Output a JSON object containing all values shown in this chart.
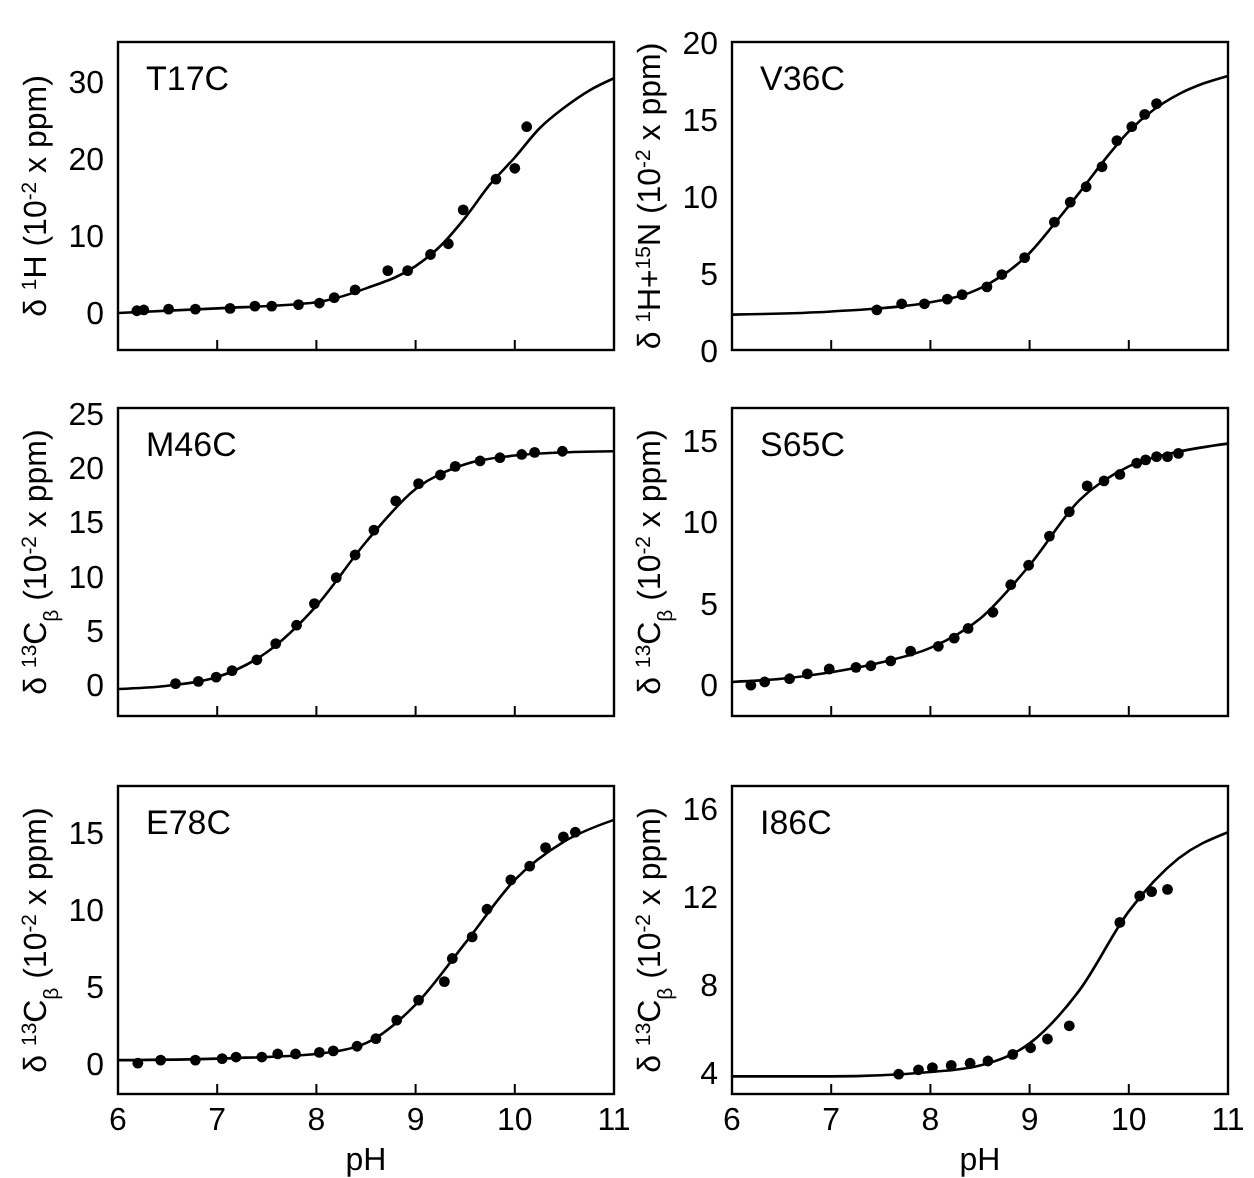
{
  "chart_data": [
    {
      "type": "scatter",
      "title": "T17C",
      "ylabel": "δ $^{1}$H (10$^{-2}$ x ppm)",
      "xlim": [
        6,
        11
      ],
      "ylim": [
        -5,
        35
      ],
      "xticks": [
        6,
        7,
        8,
        9,
        10,
        11
      ],
      "yticks": [
        0,
        10,
        20,
        30
      ],
      "tick_labels": "y",
      "series": [
        {
          "marker": "circle",
          "color": "#000000",
          "x": [
            6.19,
            6.26,
            6.51,
            6.78,
            7.13,
            7.38,
            7.55,
            7.82,
            8.03,
            8.18,
            8.39,
            8.72,
            8.92,
            9.15,
            9.33,
            9.48,
            9.81,
            10.0,
            10.12
          ],
          "values": [
            0.1,
            0.2,
            0.3,
            0.3,
            0.4,
            0.7,
            0.7,
            0.9,
            1.1,
            1.8,
            2.8,
            5.3,
            5.3,
            7.4,
            8.8,
            13.2,
            17.2,
            18.6,
            24.0
          ]
        },
        {
          "type": "line",
          "color": "#000000",
          "x": [
            6,
            7,
            8,
            8.5,
            9,
            9.25,
            9.5,
            9.75,
            10,
            10.25,
            10.5,
            10.75,
            11
          ],
          "values": [
            -0.2,
            0.4,
            1.2,
            3,
            5.9,
            8.5,
            12.2,
            16.5,
            20,
            23.8,
            26.5,
            28.7,
            30.3
          ]
        }
      ]
    },
    {
      "type": "scatter",
      "title": "V36C",
      "ylabel": "δ $^{1}$H+$^{15}$N (10$^{-2}$ x ppm)",
      "xlim": [
        6,
        11
      ],
      "ylim": [
        0,
        20
      ],
      "xticks": [
        6,
        7,
        8,
        9,
        10,
        11
      ],
      "yticks": [
        0,
        5,
        10,
        15,
        20
      ],
      "tick_labels": "y",
      "series": [
        {
          "marker": "circle",
          "color": "#000000",
          "x": [
            7.46,
            7.71,
            7.94,
            8.17,
            8.32,
            8.57,
            8.72,
            8.95,
            9.25,
            9.41,
            9.57,
            9.73,
            9.88,
            10.03,
            10.16,
            10.28
          ],
          "values": [
            2.6,
            3.0,
            3.0,
            3.3,
            3.6,
            4.1,
            4.9,
            6.0,
            8.3,
            9.6,
            10.6,
            11.9,
            13.6,
            14.5,
            15.3,
            16.0
          ]
        },
        {
          "type": "line",
          "color": "#000000",
          "x": [
            6,
            7,
            8,
            8.5,
            9,
            9.25,
            9.5,
            9.75,
            10,
            10.25,
            10.5,
            10.75,
            11
          ],
          "values": [
            2.3,
            2.5,
            3.1,
            4.0,
            6.3,
            8.2,
            10.2,
            12.3,
            14.2,
            15.6,
            16.6,
            17.3,
            17.8
          ]
        }
      ]
    },
    {
      "type": "scatter",
      "title": "M46C",
      "ylabel": "δ $^{13}$C$_{β}$ (10$^{-2}$ x ppm)",
      "xlim": [
        6,
        11
      ],
      "ylim": [
        -3,
        25.5
      ],
      "xticks": [
        6,
        7,
        8,
        9,
        10,
        11
      ],
      "yticks": [
        0,
        5,
        10,
        15,
        20,
        25
      ],
      "tick_labels": "y",
      "series": [
        {
          "marker": "circle",
          "color": "#000000",
          "x": [
            6.58,
            6.81,
            6.99,
            7.15,
            7.4,
            7.59,
            7.8,
            7.98,
            8.2,
            8.39,
            8.58,
            8.8,
            9.03,
            9.25,
            9.4,
            9.65,
            9.85,
            10.07,
            10.2,
            10.48
          ],
          "values": [
            0,
            0.2,
            0.6,
            1.2,
            2.2,
            3.7,
            5.4,
            7.4,
            9.8,
            11.9,
            14.2,
            16.9,
            18.5,
            19.3,
            20.1,
            20.6,
            20.9,
            21.2,
            21.4,
            21.5
          ]
        },
        {
          "type": "line",
          "color": "#000000",
          "x": [
            6,
            6.5,
            7,
            7.5,
            8,
            8.5,
            9,
            9.5,
            10,
            10.5,
            11
          ],
          "values": [
            -0.5,
            -0.2,
            0.6,
            2.9,
            7.2,
            13.1,
            18,
            20.3,
            21.1,
            21.4,
            21.5
          ]
        }
      ]
    },
    {
      "type": "scatter",
      "title": "S65C",
      "ylabel": "δ $^{13}$C$_{β}$ (10$^{-2}$ x ppm)",
      "xlim": [
        6,
        11
      ],
      "ylim": [
        -2,
        17
      ],
      "xticks": [
        6,
        7,
        8,
        9,
        10,
        11
      ],
      "yticks": [
        0,
        5,
        10,
        15
      ],
      "tick_labels": "y",
      "series": [
        {
          "marker": "circle",
          "color": "#000000",
          "x": [
            6.19,
            6.33,
            6.58,
            6.76,
            6.98,
            7.25,
            7.4,
            7.6,
            7.8,
            8.08,
            8.24,
            8.38,
            8.63,
            8.81,
            8.99,
            9.2,
            9.4,
            9.58,
            9.75,
            9.91,
            10.08,
            10.17,
            10.28,
            10.39,
            10.5
          ],
          "values": [
            -0.1,
            0.1,
            0.3,
            0.6,
            0.9,
            1.0,
            1.1,
            1.4,
            2.0,
            2.3,
            2.8,
            3.4,
            4.4,
            6.1,
            7.3,
            9.1,
            10.6,
            12.2,
            12.5,
            12.9,
            13.6,
            13.8,
            14.0,
            14.0,
            14.2
          ]
        },
        {
          "type": "line",
          "color": "#000000",
          "x": [
            6,
            6.5,
            7,
            7.5,
            8,
            8.5,
            9,
            9.5,
            10,
            10.5,
            11
          ],
          "values": [
            0.1,
            0.3,
            0.7,
            1.3,
            2.2,
            4.0,
            7.3,
            11.3,
            13.4,
            14.3,
            14.8
          ]
        }
      ]
    },
    {
      "type": "scatter",
      "title": "E78C",
      "xlabel": "pH",
      "ylabel": "δ $^{13}$C$_{β}$ (10$^{-2}$ x ppm)",
      "xlim": [
        6,
        11
      ],
      "ylim": [
        -2,
        18
      ],
      "xticks": [
        6,
        7,
        8,
        9,
        10,
        11
      ],
      "yticks": [
        0,
        5,
        10,
        15
      ],
      "series": [
        {
          "marker": "circle",
          "color": "#000000",
          "x": [
            6.2,
            6.43,
            6.78,
            7.05,
            7.19,
            7.45,
            7.61,
            7.79,
            8.03,
            8.17,
            8.41,
            8.6,
            8.81,
            9.03,
            9.29,
            9.37,
            9.57,
            9.72,
            9.96,
            10.15,
            10.31,
            10.49,
            10.61
          ],
          "values": [
            0,
            0.2,
            0.2,
            0.3,
            0.4,
            0.4,
            0.6,
            0.6,
            0.7,
            0.8,
            1.1,
            1.6,
            2.8,
            4.1,
            5.3,
            6.8,
            8.2,
            10.0,
            11.9,
            12.8,
            14.0,
            14.7,
            15.0
          ]
        },
        {
          "type": "line",
          "color": "#000000",
          "x": [
            6,
            7,
            8,
            8.5,
            9,
            9.5,
            10,
            10.5,
            11
          ],
          "values": [
            0.2,
            0.3,
            0.6,
            1.3,
            3.8,
            7.8,
            11.9,
            14.4,
            15.8
          ]
        }
      ]
    },
    {
      "type": "scatter",
      "title": "I86C",
      "xlabel": "pH",
      "ylabel": "δ $^{13}$C$_{β}$ (10$^{-2}$ x ppm)",
      "xlim": [
        6,
        11
      ],
      "ylim": [
        3,
        17
      ],
      "xticks": [
        6,
        7,
        8,
        9,
        10,
        11
      ],
      "yticks": [
        4,
        8,
        12,
        16
      ],
      "series": [
        {
          "marker": "circle",
          "color": "#000000",
          "x": [
            7.68,
            7.88,
            8.02,
            8.21,
            8.4,
            8.58,
            8.83,
            9.01,
            9.18,
            9.4,
            9.91,
            10.11,
            10.23,
            10.39
          ],
          "values": [
            3.9,
            4.1,
            4.2,
            4.3,
            4.4,
            4.5,
            4.8,
            5.1,
            5.5,
            6.1,
            10.8,
            12.0,
            12.2,
            12.3
          ]
        },
        {
          "type": "line",
          "color": "#000000",
          "x": [
            6,
            7,
            8,
            8.5,
            9,
            9.5,
            10,
            10.5,
            11
          ],
          "values": [
            3.8,
            3.8,
            4.0,
            4.3,
            5.3,
            7.7,
            11.3,
            13.7,
            14.9
          ]
        }
      ]
    }
  ]
}
